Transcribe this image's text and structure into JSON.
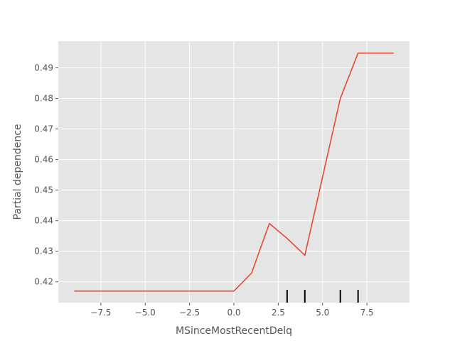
{
  "chart_data": {
    "type": "line",
    "xlabel": "MSinceMostRecentDelq",
    "ylabel": "Partial dependence",
    "xlim": [
      -9.9,
      9.9
    ],
    "ylim": [
      0.4132,
      0.4987
    ],
    "grid": true,
    "x_ticks": [
      -7.5,
      -5.0,
      -2.5,
      0.0,
      2.5,
      5.0,
      7.5
    ],
    "x_tick_labels": [
      "−7.5",
      "−5.0",
      "−2.5",
      "0.0",
      "2.5",
      "5.0",
      "7.5"
    ],
    "y_ticks": [
      0.42,
      0.43,
      0.44,
      0.45,
      0.46,
      0.47,
      0.48,
      0.49
    ],
    "y_tick_labels": [
      "0.42",
      "0.43",
      "0.44",
      "0.45",
      "0.46",
      "0.47",
      "0.48",
      "0.49"
    ],
    "series": [
      {
        "color": "#e24a33",
        "x": [
          -9,
          0,
          1,
          2,
          3,
          4,
          5,
          6,
          7,
          9
        ],
        "y": [
          0.417,
          0.417,
          0.4229,
          0.4391,
          0.4342,
          0.4287,
          0.4543,
          0.48,
          0.4948,
          0.4948
        ]
      }
    ],
    "rug": {
      "color": "#000000",
      "x": [
        3,
        4,
        6,
        7
      ]
    }
  }
}
